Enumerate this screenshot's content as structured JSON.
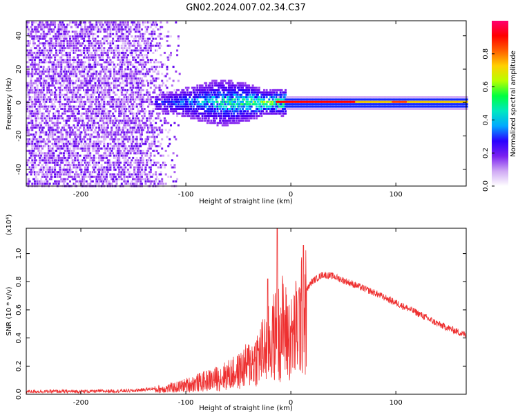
{
  "title": "GN02.2024.007.02.34.C37",
  "chart_data": [
    {
      "type": "heatmap",
      "xlabel": "Height of straight line (km)",
      "ylabel": "Frequency (Hz)",
      "xlim": [
        -252,
        167
      ],
      "ylim": [
        -50,
        49
      ],
      "xticks": [
        -200,
        -100,
        0,
        100
      ],
      "xtick_labels": [
        "-200",
        "-100",
        "0",
        "100"
      ],
      "yticks": [
        -40,
        -20,
        0,
        20,
        40
      ],
      "ytick_labels": [
        "-40",
        "-20",
        "0",
        "20",
        "40"
      ],
      "colorbar": {
        "label": "Normalized spectral amplitude",
        "range": [
          0,
          1
        ],
        "ticks": [
          0.0,
          0.2,
          0.4,
          0.6,
          0.8
        ],
        "tick_labels": [
          "0.0",
          "0.2",
          "0.4",
          "0.6",
          "0.8"
        ],
        "colors": [
          "#ffffff",
          "#e2c8f8",
          "#9b40f0",
          "#5a00f0",
          "#1a00ff",
          "#00d8ff",
          "#00ff60",
          "#d0ff00",
          "#ff8000",
          "#ff0000",
          "#ff0070"
        ]
      },
      "features": {
        "noise_region_km": [
          -252,
          -105
        ],
        "signal_onset_km": -130,
        "carrier_line_start_km": -15,
        "carrier_freq_hz": 0
      }
    },
    {
      "type": "line",
      "xlabel": "Height of straight line (km)",
      "ylabel": "SNR (10 * v/v)",
      "y_multiplier": "(x10⁴)",
      "xlim": [
        -252,
        167
      ],
      "ylim": [
        0,
        1.18
      ],
      "xticks": [
        -200,
        -100,
        0,
        100
      ],
      "xtick_labels": [
        "-200",
        "-100",
        "0",
        "100"
      ],
      "yticks": [
        0.0,
        0.2,
        0.4,
        0.6,
        0.8,
        1.0
      ],
      "ytick_labels": [
        "0.0",
        "0.2",
        "0.4",
        "0.6",
        "0.8",
        "1.0"
      ],
      "series": [
        {
          "name": "SNR",
          "color": "#ee3030",
          "x": [
            -252,
            -200,
            -150,
            -130,
            -110,
            -90,
            -70,
            -50,
            -35,
            -25,
            -15,
            -8,
            0,
            10,
            20,
            30,
            40,
            60,
            80,
            100,
            120,
            140,
            167
          ],
          "y": [
            0.02,
            0.02,
            0.025,
            0.04,
            0.06,
            0.1,
            0.14,
            0.2,
            0.3,
            0.4,
            0.52,
            0.6,
            0.48,
            0.68,
            0.8,
            0.85,
            0.84,
            0.78,
            0.72,
            0.65,
            0.58,
            0.5,
            0.42
          ]
        }
      ],
      "peaks": [
        {
          "x": -13,
          "y": 1.18
        },
        {
          "x": 12,
          "y": 1.06
        },
        {
          "x": -22,
          "y": 0.82
        },
        {
          "x": 90,
          "y": 0.68
        }
      ]
    }
  ]
}
